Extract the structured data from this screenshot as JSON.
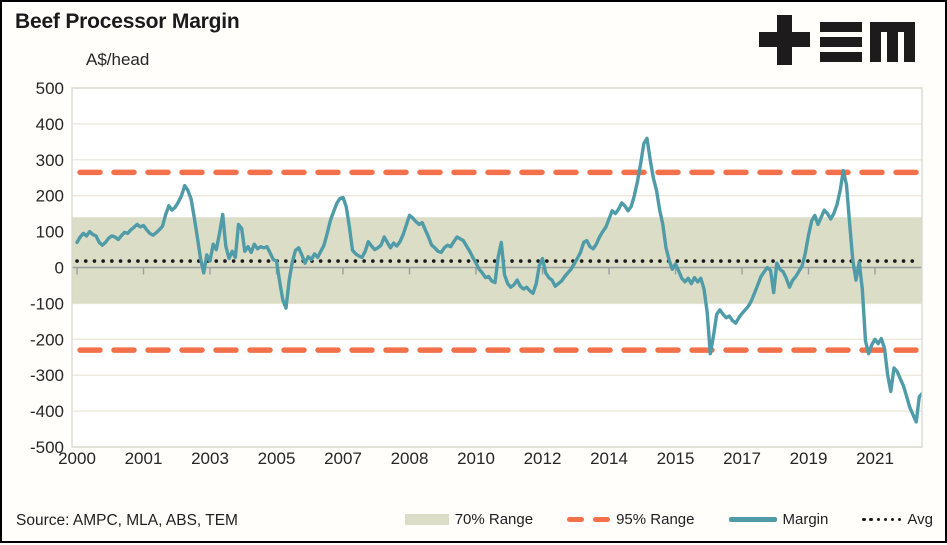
{
  "header": {
    "title": "Beef Processor Margin",
    "unit": "A$/head",
    "logo": "TEM"
  },
  "footer": {
    "source": "Source: AMPC, MLA, ABS, TEM"
  },
  "legend": [
    {
      "label": "70% Range"
    },
    {
      "label": "95% Range"
    },
    {
      "label": "Margin"
    },
    {
      "label": "Avg"
    }
  ],
  "chart_data": {
    "type": "line",
    "title": "Beef Processor Margin",
    "ylabel": "A$/head",
    "ylim": [
      -500,
      500
    ],
    "grid": true,
    "legend_position": "bottom",
    "y_ticks": [
      500,
      400,
      300,
      200,
      100,
      0,
      -100,
      -200,
      -300,
      -400,
      -500
    ],
    "x_ticks": [
      {
        "label": "2000",
        "year": 2000
      },
      {
        "label": "2001",
        "year": 2001.75
      },
      {
        "label": "2003",
        "year": 2003.5
      },
      {
        "label": "2005",
        "year": 2005.25
      },
      {
        "label": "2007",
        "year": 2007
      },
      {
        "label": "2008",
        "year": 2008.75
      },
      {
        "label": "2010",
        "year": 2010.5
      },
      {
        "label": "2012",
        "year": 2012.25
      },
      {
        "label": "2014",
        "year": 2014
      },
      {
        "label": "2015",
        "year": 2015.75
      },
      {
        "label": "2017",
        "year": 2017.5
      },
      {
        "label": "2019",
        "year": 2019.25
      },
      {
        "label": "2021",
        "year": 2021
      }
    ],
    "avg": 18,
    "band_70": {
      "low": -100,
      "high": 140
    },
    "range_95": {
      "low": -230,
      "high": 265
    },
    "margin_series": {
      "name": "Margin",
      "unit": "A$/head",
      "start_year": 2000,
      "interval_months": 1,
      "values": [
        70,
        85,
        95,
        88,
        100,
        92,
        88,
        70,
        62,
        70,
        82,
        88,
        85,
        78,
        88,
        98,
        95,
        105,
        112,
        120,
        113,
        117,
        105,
        95,
        90,
        97,
        105,
        115,
        148,
        172,
        160,
        168,
        182,
        200,
        228,
        215,
        192,
        140,
        85,
        25,
        -15,
        35,
        18,
        65,
        50,
        95,
        148,
        60,
        25,
        45,
        28,
        120,
        108,
        45,
        58,
        42,
        65,
        52,
        58,
        55,
        58,
        40,
        22,
        18,
        -40,
        -90,
        -113,
        -35,
        15,
        48,
        55,
        35,
        12,
        30,
        22,
        38,
        28,
        45,
        62,
        95,
        130,
        155,
        178,
        192,
        195,
        170,
        115,
        48,
        38,
        32,
        28,
        45,
        72,
        60,
        50,
        55,
        62,
        85,
        70,
        55,
        68,
        60,
        72,
        92,
        118,
        145,
        138,
        128,
        120,
        125,
        105,
        85,
        62,
        55,
        45,
        42,
        55,
        62,
        58,
        72,
        85,
        80,
        75,
        60,
        45,
        28,
        12,
        -5,
        -15,
        -28,
        -25,
        -38,
        -42,
        30,
        70,
        -20,
        -45,
        -55,
        -48,
        -35,
        -52,
        -60,
        -55,
        -65,
        -72,
        -45,
        5,
        25,
        -15,
        -28,
        -35,
        -52,
        -45,
        -38,
        -25,
        -15,
        -5,
        10,
        25,
        42,
        70,
        75,
        58,
        52,
        65,
        85,
        100,
        112,
        135,
        158,
        150,
        162,
        180,
        172,
        158,
        170,
        200,
        240,
        290,
        345,
        360,
        300,
        250,
        215,
        160,
        120,
        55,
        20,
        -5,
        10,
        -10,
        -30,
        -40,
        -30,
        -45,
        -28,
        -40,
        -30,
        -60,
        -125,
        -240,
        -190,
        -130,
        -118,
        -130,
        -140,
        -135,
        -148,
        -155,
        -140,
        -128,
        -118,
        -108,
        -92,
        -70,
        -48,
        -25,
        -12,
        0,
        -8,
        -70,
        12,
        -5,
        -12,
        -30,
        -55,
        -35,
        -25,
        -10,
        5,
        40,
        90,
        130,
        145,
        120,
        140,
        160,
        150,
        135,
        150,
        175,
        215,
        270,
        230,
        120,
        20,
        -35,
        15,
        -60,
        -205,
        -240,
        -215,
        -200,
        -212,
        -198,
        -225,
        -300,
        -345,
        -280,
        -290,
        -310,
        -330,
        -360,
        -390,
        -410,
        -430,
        -360,
        -350
      ]
    },
    "colors": {
      "margin": "#4f9ca8",
      "range95": "#f2714b",
      "band": "#dcddc7",
      "avg": "#1a1a1a",
      "gridline": "#ece9db",
      "zero_axis": "#9a9f9f",
      "plot_border": "#d9d8cf"
    }
  }
}
